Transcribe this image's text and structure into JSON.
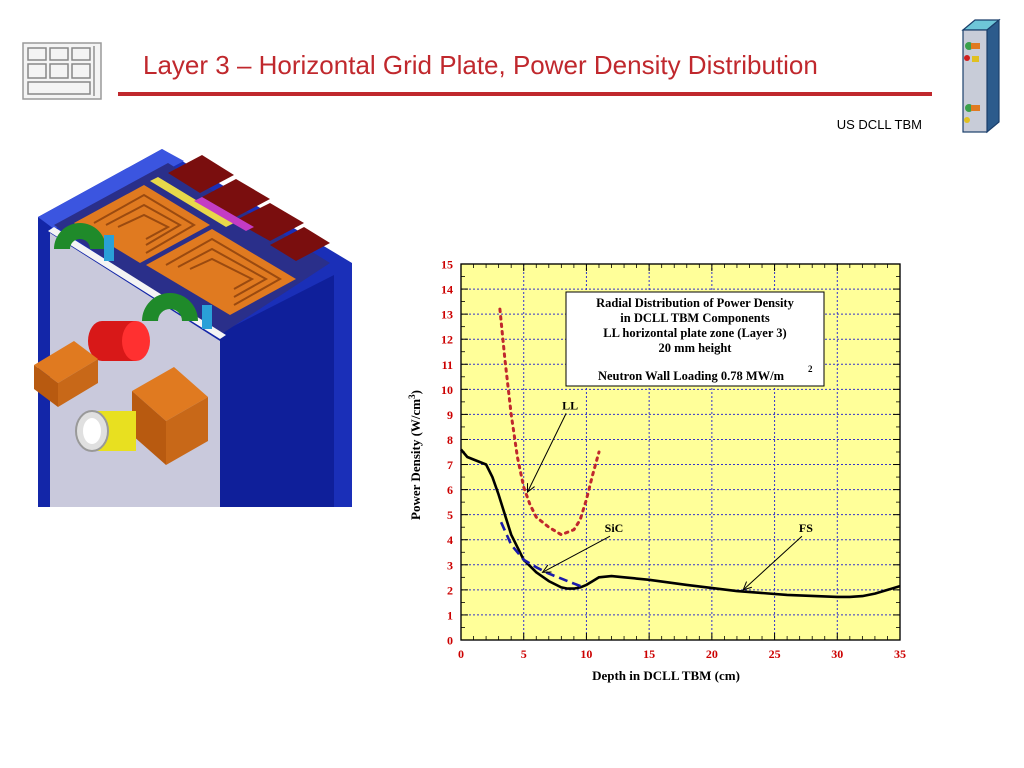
{
  "slide": {
    "title": "Layer 3 – Horizontal Grid Plate, Power Density Distribution",
    "subtitle": "US DCLL TBM"
  },
  "icons": [
    "facility-logo-icon",
    "tbm-module-icon",
    "tbm-3d-model-illustration"
  ],
  "colors": {
    "title": "#c0282d",
    "plot_bg": "#ffff99",
    "grid": "#3333cc",
    "tick_labels": "#cc0000",
    "fs_line": "#000000",
    "sic_line": "#1a1aaa",
    "ll_line": "#c0282d"
  },
  "chart_data": {
    "type": "line",
    "title": "Radial Distribution of Power Density",
    "title_lines": [
      "Radial Distribution of Power Density",
      "in DCLL TBM Components",
      "LL horizontal plate zone (Layer 3)",
      "20 mm height",
      "Neutron Wall Loading 0.78 MW/m"
    ],
    "title_superscript": "2",
    "xlabel": "Depth in DCLL TBM (cm)",
    "ylabel": "Power Density (W/cm",
    "ylabel_sup": "3",
    "ylabel_end": ")",
    "xlim": [
      0,
      35
    ],
    "ylim": [
      0,
      15
    ],
    "xticks": [
      "0",
      "5",
      "10",
      "15",
      "20",
      "25",
      "30",
      "35"
    ],
    "yticks": [
      "0",
      "1",
      "2",
      "3",
      "4",
      "5",
      "6",
      "7",
      "8",
      "9",
      "10",
      "11",
      "12",
      "13",
      "14",
      "15"
    ],
    "grid": true,
    "series": [
      {
        "name": "FS",
        "style": "solid",
        "x": [
          0,
          0.5,
          1,
          2,
          2.5,
          3,
          3.5,
          4,
          5,
          6,
          7,
          8,
          8.5,
          9,
          9.5,
          10,
          10.5,
          11,
          12,
          13,
          15,
          18,
          22,
          26,
          30,
          31,
          32,
          33,
          34,
          35
        ],
        "y": [
          7.6,
          7.3,
          7.2,
          7.0,
          6.5,
          5.8,
          5.0,
          4.2,
          3.2,
          2.7,
          2.35,
          2.1,
          2.05,
          2.05,
          2.1,
          2.2,
          2.35,
          2.5,
          2.55,
          2.5,
          2.4,
          2.2,
          1.95,
          1.8,
          1.72,
          1.72,
          1.75,
          1.85,
          2.0,
          2.15
        ]
      },
      {
        "name": "SiC",
        "style": "dashed",
        "x": [
          3.2,
          4,
          5,
          6,
          7,
          8,
          9,
          9.8
        ],
        "y": [
          4.7,
          3.8,
          3.2,
          2.9,
          2.65,
          2.45,
          2.25,
          2.1
        ]
      },
      {
        "name": "LL",
        "style": "dotted",
        "x": [
          3.1,
          3.5,
          4,
          4.5,
          5,
          5.5,
          6,
          7,
          8,
          9,
          9.5,
          10,
          10.5,
          11
        ],
        "y": [
          13.2,
          11.2,
          9.0,
          7.3,
          6.1,
          5.4,
          4.9,
          4.5,
          4.2,
          4.4,
          4.8,
          5.6,
          6.6,
          7.5
        ]
      }
    ],
    "annotations": [
      {
        "label": "LL",
        "text_at": [
          8.7,
          9.2
        ],
        "arrow_to": [
          5.3,
          5.9
        ]
      },
      {
        "label": "SiC",
        "text_at": [
          12.2,
          4.3
        ],
        "arrow_to": [
          6.5,
          2.7
        ]
      },
      {
        "label": "FS",
        "text_at": [
          27.5,
          4.3
        ],
        "arrow_to": [
          22.5,
          2.0
        ]
      }
    ]
  }
}
